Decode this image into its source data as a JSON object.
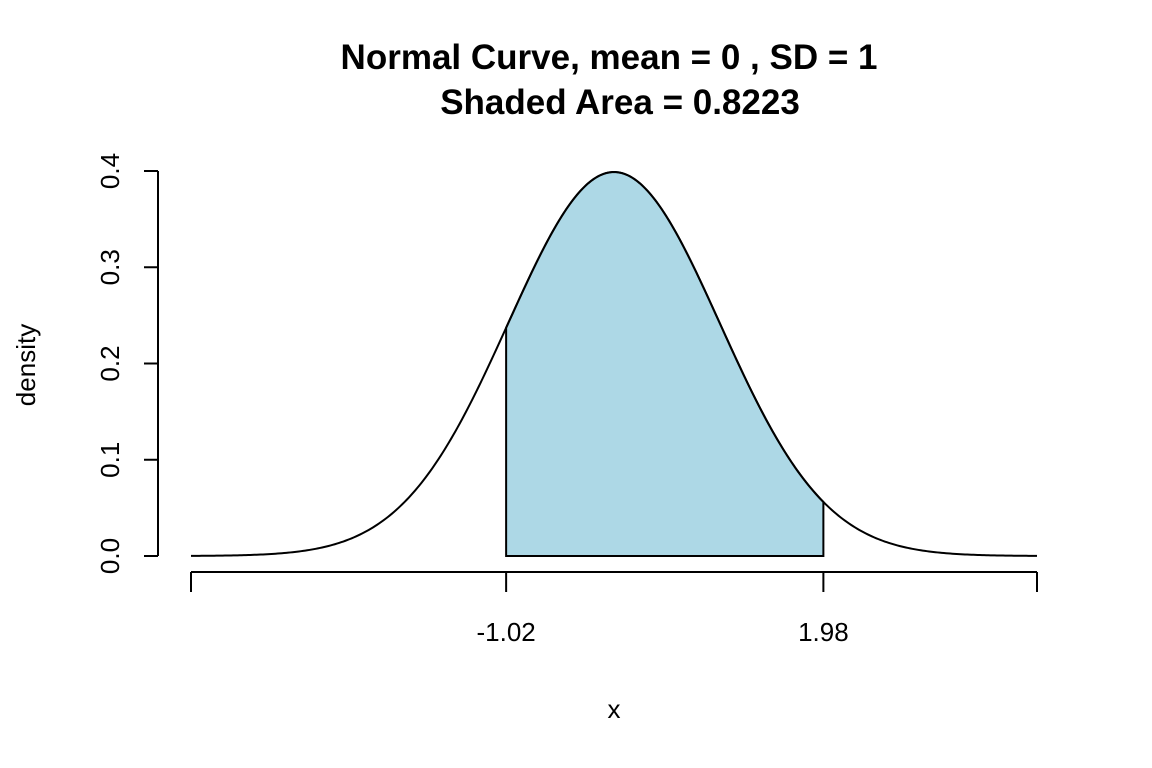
{
  "chart_data": {
    "type": "area",
    "title_line1": "Normal Curve, mean =  0 , SD =  1",
    "title_line2": "Shaded Area =  0.8223",
    "xlabel": "x",
    "ylabel": "density",
    "mean": 0,
    "sd": 1,
    "shaded_area": 0.8223,
    "shade_from": -1.02,
    "shade_to": 1.98,
    "shade_color": "#add8e6",
    "xlim": [
      -4,
      4
    ],
    "ylim": [
      0,
      0.4
    ],
    "x_ticks": [
      -4,
      -1.02,
      1.98,
      4
    ],
    "x_tick_labels": [
      "",
      "-1.02",
      "1.98",
      ""
    ],
    "y_ticks": [
      0,
      0.1,
      0.2,
      0.3,
      0.4
    ],
    "y_tick_labels": [
      "0.0",
      "0.1",
      "0.2",
      "0.3",
      "0.4"
    ],
    "grid": false,
    "legend": "none"
  }
}
